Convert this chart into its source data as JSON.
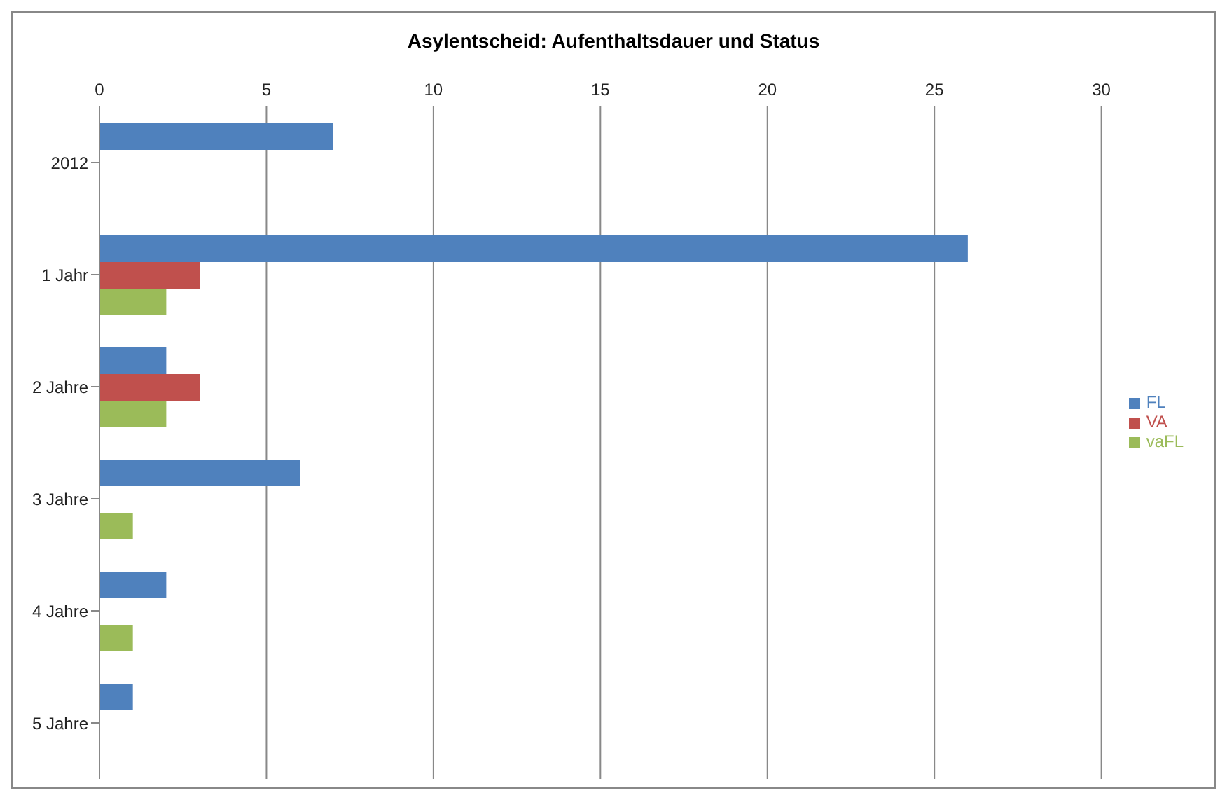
{
  "chart_data": {
    "type": "bar",
    "orientation": "horizontal",
    "title": "Asylentscheid: Aufenthaltsdauer und Status",
    "categories": [
      "2012",
      "1 Jahr",
      "2 Jahre",
      "3 Jahre",
      "4 Jahre",
      "5 Jahre"
    ],
    "series": [
      {
        "name": "FL",
        "color": "#4f81bd",
        "values": [
          7,
          26,
          2,
          6,
          2,
          1
        ]
      },
      {
        "name": "VA",
        "color": "#c0504d",
        "values": [
          0,
          3,
          3,
          0,
          0,
          0
        ]
      },
      {
        "name": "vaFL",
        "color": "#9bbb59",
        "values": [
          0,
          2,
          2,
          1,
          1,
          0
        ]
      }
    ],
    "xlim": [
      0,
      30
    ],
    "xticks": [
      0,
      5,
      10,
      15,
      20,
      25,
      30
    ],
    "grid": "x",
    "legend": "right"
  }
}
